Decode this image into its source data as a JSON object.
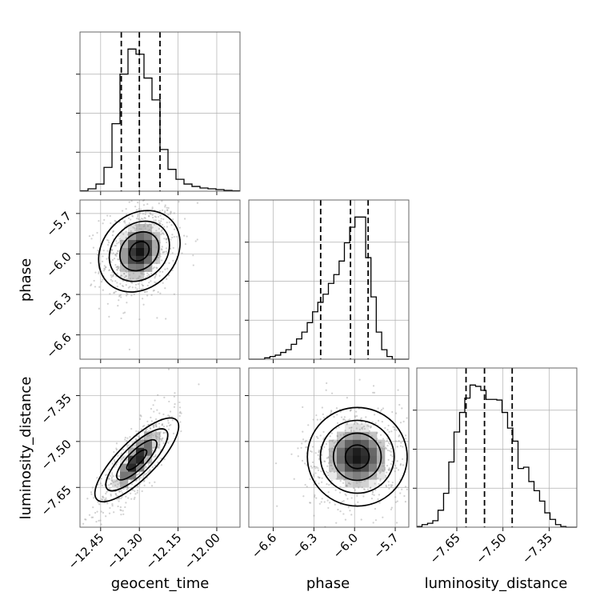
{
  "chart_data": {
    "type": "corner",
    "parameters": [
      "geocent_time",
      "phase",
      "luminosity_distance"
    ],
    "axis_labels": {
      "x": [
        "geocent_time",
        "phase",
        "luminosity_distance"
      ],
      "y_rows": [
        "phase",
        "luminosity_distance"
      ]
    },
    "tick_labels": {
      "geocent_time": [
        "−12.45",
        "−12.30",
        "−12.15",
        "−12.00"
      ],
      "phase": [
        "−6.6",
        "−6.3",
        "−6.0",
        "−5.7"
      ],
      "luminosity_distance": [
        "−7.65",
        "−7.50",
        "−7.35"
      ]
    },
    "ranges": {
      "geocent_time": [
        -12.53,
        -11.91
      ],
      "phase": [
        -6.78,
        -5.6
      ],
      "luminosity_distance": [
        -7.78,
        -7.26
      ]
    },
    "grid": true,
    "histograms": {
      "geocent_time": {
        "bin_edges": [
          -12.53,
          -12.499,
          -12.468,
          -12.437,
          -12.406,
          -12.375,
          -12.344,
          -12.313,
          -12.282,
          -12.251,
          -12.22,
          -12.189,
          -12.158,
          -12.127,
          -12.096,
          -12.065,
          -12.034,
          -12.003,
          -11.972,
          -11.941,
          -11.91
        ],
        "values": [
          1,
          6,
          18,
          60,
          170,
          295,
          358,
          345,
          285,
          230,
          105,
          55,
          30,
          18,
          12,
          8,
          6,
          4,
          2,
          1
        ],
        "quantiles": [
          -12.37,
          -12.3,
          -12.22
        ]
      },
      "phase": {
        "bin_edges": [
          -6.78,
          -6.741,
          -6.702,
          -6.663,
          -6.624,
          -6.585,
          -6.545,
          -6.506,
          -6.467,
          -6.428,
          -6.389,
          -6.349,
          -6.31,
          -6.271,
          -6.232,
          -6.193,
          -6.153,
          -6.114,
          -6.075,
          -6.036,
          -5.997,
          -5.957,
          -5.918,
          -5.879,
          -5.84,
          -5.8,
          -5.761,
          -5.722,
          -5.683,
          -5.644,
          -5.6
        ],
        "values": [
          0,
          0,
          0,
          2,
          4,
          6,
          10,
          14,
          22,
          30,
          40,
          54,
          70,
          84,
          96,
          112,
          125,
          145,
          172,
          195,
          210,
          210,
          150,
          92,
          40,
          14,
          4,
          0,
          0,
          0
        ],
        "quantiles": [
          -6.25,
          -6.03,
          -5.9
        ]
      },
      "luminosity_distance": {
        "bin_edges": [
          -7.78,
          -7.763,
          -7.745,
          -7.728,
          -7.711,
          -7.693,
          -7.676,
          -7.659,
          -7.641,
          -7.624,
          -7.607,
          -7.589,
          -7.572,
          -7.555,
          -7.537,
          -7.52,
          -7.503,
          -7.485,
          -7.468,
          -7.451,
          -7.433,
          -7.416,
          -7.399,
          -7.381,
          -7.364,
          -7.347,
          -7.329,
          -7.312,
          -7.295,
          -7.277,
          -7.26
        ],
        "values": [
          1,
          4,
          6,
          10,
          26,
          52,
          100,
          146,
          176,
          198,
          218,
          216,
          210,
          196,
          196,
          195,
          176,
          152,
          132,
          90,
          92,
          70,
          56,
          40,
          22,
          12,
          4,
          1,
          0,
          0
        ],
        "quantiles": [
          -7.62,
          -7.56,
          -7.47
        ]
      }
    },
    "scatter_panels": [
      {
        "x": "geocent_time",
        "y": "phase",
        "center": [
          -12.3,
          -5.98
        ],
        "sd": [
          0.06,
          0.15
        ],
        "corr": 0.2,
        "contour_levels": 4
      },
      {
        "x": "geocent_time",
        "y": "luminosity_distance",
        "center": [
          -12.31,
          -7.56
        ],
        "sd": [
          0.06,
          0.07
        ],
        "corr": 0.8,
        "contour_levels": 4
      },
      {
        "x": "phase",
        "y": "luminosity_distance",
        "center": [
          -5.98,
          -7.55
        ],
        "sd": [
          0.16,
          0.07
        ],
        "corr": 0.0,
        "contour_levels": 4
      }
    ]
  }
}
